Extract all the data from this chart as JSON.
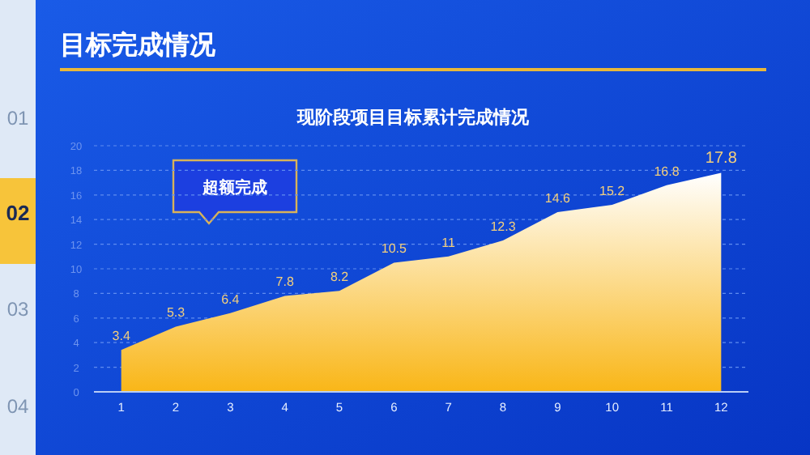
{
  "chart_data": {
    "type": "area",
    "title": "目标完成情况",
    "subtitle": "现阶段项目目标累计完成情况",
    "categories": [
      "1",
      "2",
      "3",
      "4",
      "5",
      "6",
      "7",
      "8",
      "9",
      "10",
      "11",
      "12"
    ],
    "values": [
      3.4,
      5.3,
      6.4,
      7.8,
      8.2,
      10.5,
      11,
      12.3,
      14.6,
      15.2,
      16.8,
      17.8
    ],
    "color": "#f9b617",
    "ylim": [
      0,
      20
    ],
    "yticks": [
      0,
      2,
      4,
      6,
      8,
      10,
      12,
      14,
      16,
      18,
      20
    ],
    "grid": "y",
    "data_labels": true,
    "annotations": [
      "超额完成",
      "01",
      "02",
      "03",
      "04"
    ]
  }
}
